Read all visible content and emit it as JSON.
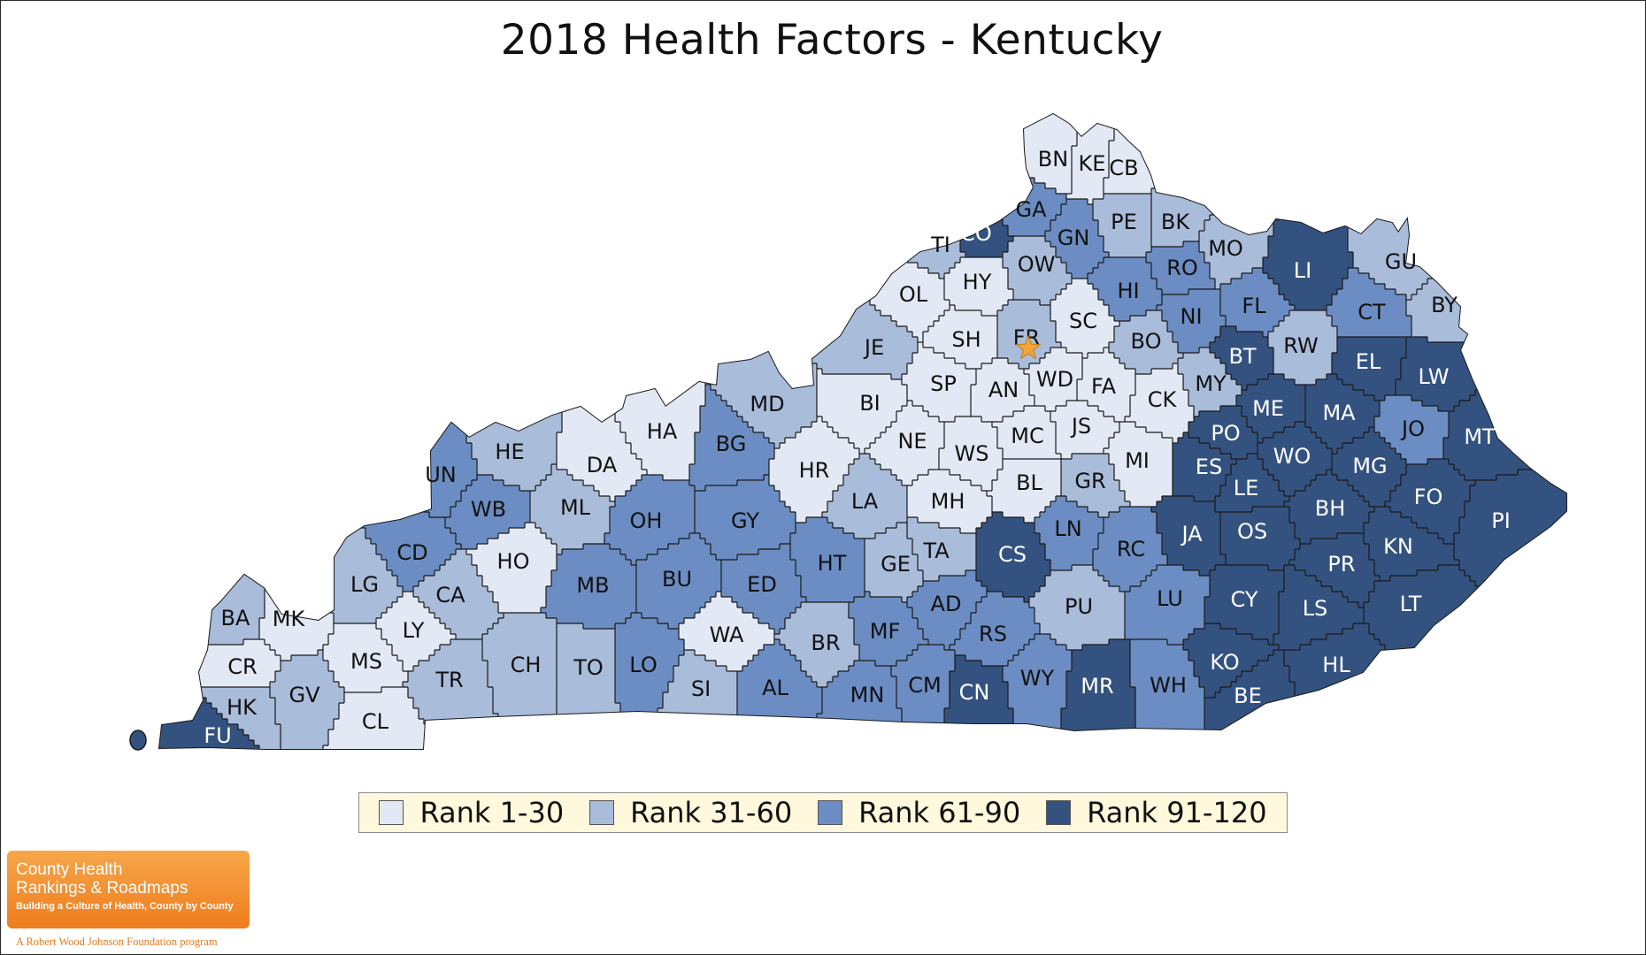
{
  "title": "2018 Health Factors - Kentucky",
  "colors": {
    "rank_1_30": "#e3e9f4",
    "rank_31_60": "#a9bcda",
    "rank_61_90": "#6b8dc3",
    "rank_91_120": "#33527f",
    "border": "#1a1a1a",
    "capital_star": "#f3a43a"
  },
  "legend": [
    {
      "label": "Rank 1-30",
      "class": 1
    },
    {
      "label": "Rank 31-60",
      "class": 2
    },
    {
      "label": "Rank 61-90",
      "class": 3
    },
    {
      "label": "Rank 91-120",
      "class": 4
    }
  ],
  "capital_marker": {
    "icon": "star-icon",
    "county": "FR"
  },
  "counties": [
    {
      "abbr": "BN",
      "class": 1
    },
    {
      "abbr": "KE",
      "class": 1
    },
    {
      "abbr": "CB",
      "class": 1
    },
    {
      "abbr": "GA",
      "class": 3
    },
    {
      "abbr": "CO",
      "class": 4
    },
    {
      "abbr": "TI",
      "class": 2
    },
    {
      "abbr": "GN",
      "class": 3
    },
    {
      "abbr": "PE",
      "class": 2
    },
    {
      "abbr": "BK",
      "class": 2
    },
    {
      "abbr": "MO",
      "class": 2
    },
    {
      "abbr": "LI",
      "class": 4
    },
    {
      "abbr": "GU",
      "class": 2
    },
    {
      "abbr": "BY",
      "class": 2
    },
    {
      "abbr": "OW",
      "class": 2
    },
    {
      "abbr": "HY",
      "class": 1
    },
    {
      "abbr": "OL",
      "class": 1
    },
    {
      "abbr": "HI",
      "class": 3
    },
    {
      "abbr": "RO",
      "class": 3
    },
    {
      "abbr": "FL",
      "class": 3
    },
    {
      "abbr": "CT",
      "class": 3
    },
    {
      "abbr": "SH",
      "class": 1
    },
    {
      "abbr": "FR",
      "class": 2
    },
    {
      "abbr": "SC",
      "class": 1
    },
    {
      "abbr": "NI",
      "class": 3
    },
    {
      "abbr": "JE",
      "class": 2
    },
    {
      "abbr": "BO",
      "class": 2
    },
    {
      "abbr": "RW",
      "class": 2
    },
    {
      "abbr": "BT",
      "class": 4
    },
    {
      "abbr": "EL",
      "class": 4
    },
    {
      "abbr": "LW",
      "class": 4
    },
    {
      "abbr": "SP",
      "class": 1
    },
    {
      "abbr": "WD",
      "class": 1
    },
    {
      "abbr": "AN",
      "class": 1
    },
    {
      "abbr": "FA",
      "class": 1
    },
    {
      "abbr": "MY",
      "class": 2
    },
    {
      "abbr": "CK",
      "class": 1
    },
    {
      "abbr": "BI",
      "class": 1
    },
    {
      "abbr": "MD",
      "class": 2
    },
    {
      "abbr": "ME",
      "class": 4
    },
    {
      "abbr": "MA",
      "class": 4
    },
    {
      "abbr": "HA",
      "class": 1
    },
    {
      "abbr": "PO",
      "class": 4
    },
    {
      "abbr": "JS",
      "class": 1
    },
    {
      "abbr": "MC",
      "class": 1
    },
    {
      "abbr": "JO",
      "class": 3
    },
    {
      "abbr": "MT",
      "class": 4
    },
    {
      "abbr": "NE",
      "class": 1
    },
    {
      "abbr": "WS",
      "class": 1
    },
    {
      "abbr": "MI",
      "class": 1
    },
    {
      "abbr": "WO",
      "class": 4
    },
    {
      "abbr": "HE",
      "class": 2
    },
    {
      "abbr": "DA",
      "class": 1
    },
    {
      "abbr": "BG",
      "class": 3
    },
    {
      "abbr": "HR",
      "class": 1
    },
    {
      "abbr": "ES",
      "class": 4
    },
    {
      "abbr": "MG",
      "class": 4
    },
    {
      "abbr": "UN",
      "class": 3
    },
    {
      "abbr": "BL",
      "class": 1
    },
    {
      "abbr": "GR",
      "class": 2
    },
    {
      "abbr": "LE",
      "class": 4
    },
    {
      "abbr": "FO",
      "class": 4
    },
    {
      "abbr": "WB",
      "class": 3
    },
    {
      "abbr": "ML",
      "class": 2
    },
    {
      "abbr": "MH",
      "class": 1
    },
    {
      "abbr": "LA",
      "class": 2
    },
    {
      "abbr": "BH",
      "class": 4
    },
    {
      "abbr": "PI",
      "class": 4
    },
    {
      "abbr": "OH",
      "class": 3
    },
    {
      "abbr": "GY",
      "class": 3
    },
    {
      "abbr": "JA",
      "class": 4
    },
    {
      "abbr": "LN",
      "class": 3
    },
    {
      "abbr": "OS",
      "class": 4
    },
    {
      "abbr": "KN",
      "class": 4
    },
    {
      "abbr": "CD",
      "class": 3
    },
    {
      "abbr": "HO",
      "class": 1
    },
    {
      "abbr": "CS",
      "class": 4
    },
    {
      "abbr": "TA",
      "class": 2
    },
    {
      "abbr": "RC",
      "class": 3
    },
    {
      "abbr": "PR",
      "class": 4
    },
    {
      "abbr": "HT",
      "class": 3
    },
    {
      "abbr": "GE",
      "class": 2
    },
    {
      "abbr": "LG",
      "class": 2
    },
    {
      "abbr": "BU",
      "class": 3
    },
    {
      "abbr": "ED",
      "class": 3
    },
    {
      "abbr": "MB",
      "class": 3
    },
    {
      "abbr": "CA",
      "class": 2
    },
    {
      "abbr": "CY",
      "class": 4
    },
    {
      "abbr": "LU",
      "class": 3
    },
    {
      "abbr": "LS",
      "class": 4
    },
    {
      "abbr": "LT",
      "class": 4
    },
    {
      "abbr": "MK",
      "class": 1
    },
    {
      "abbr": "BA",
      "class": 2
    },
    {
      "abbr": "AD",
      "class": 3
    },
    {
      "abbr": "PU",
      "class": 2
    },
    {
      "abbr": "LY",
      "class": 1
    },
    {
      "abbr": "WA",
      "class": 1
    },
    {
      "abbr": "MF",
      "class": 3
    },
    {
      "abbr": "RS",
      "class": 3
    },
    {
      "abbr": "BR",
      "class": 2
    },
    {
      "abbr": "MS",
      "class": 1
    },
    {
      "abbr": "CR",
      "class": 1
    },
    {
      "abbr": "TR",
      "class": 2
    },
    {
      "abbr": "CH",
      "class": 2
    },
    {
      "abbr": "TO",
      "class": 2
    },
    {
      "abbr": "LO",
      "class": 3
    },
    {
      "abbr": "KO",
      "class": 4
    },
    {
      "abbr": "HL",
      "class": 4
    },
    {
      "abbr": "GV",
      "class": 2
    },
    {
      "abbr": "SI",
      "class": 2
    },
    {
      "abbr": "AL",
      "class": 3
    },
    {
      "abbr": "CM",
      "class": 3
    },
    {
      "abbr": "WY",
      "class": 3
    },
    {
      "abbr": "WH",
      "class": 3
    },
    {
      "abbr": "BE",
      "class": 4
    },
    {
      "abbr": "HK",
      "class": 2
    },
    {
      "abbr": "CL",
      "class": 1
    },
    {
      "abbr": "MN",
      "class": 3
    },
    {
      "abbr": "CN",
      "class": 4
    },
    {
      "abbr": "MR",
      "class": 4
    },
    {
      "abbr": "FU",
      "class": 4
    }
  ],
  "logo": {
    "line1": "County Health",
    "line2": "Rankings & Roadmaps",
    "tagline": "Building a Culture of Health, County by County",
    "footer": "A Robert Wood Johnson Foundation program"
  }
}
